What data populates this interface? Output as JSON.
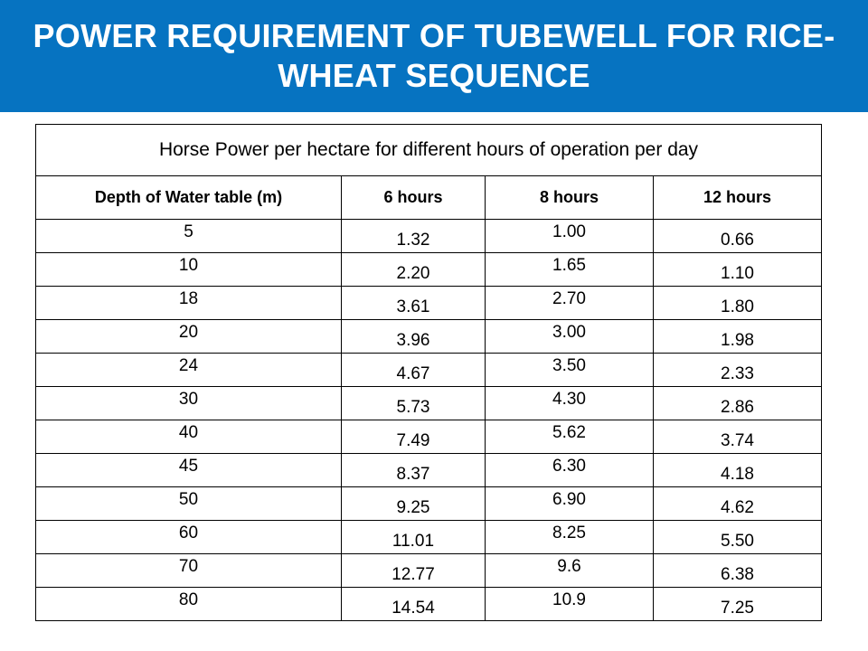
{
  "slide": {
    "title": "POWER REQUIREMENT OF TUBEWELL FOR RICE-WHEAT SEQUENCE"
  },
  "table": {
    "caption": "Horse Power per hectare for different hours of operation per day",
    "headers": [
      "Depth of Water table (m)",
      "6 hours",
      "8 hours",
      "12 hours"
    ],
    "rows": [
      [
        "5",
        "1.32",
        "1.00",
        "0.66"
      ],
      [
        "10",
        "2.20",
        "1.65",
        "1.10"
      ],
      [
        "18",
        "3.61",
        "2.70",
        "1.80"
      ],
      [
        "20",
        "3.96",
        "3.00",
        "1.98"
      ],
      [
        "24",
        "4.67",
        "3.50",
        "2.33"
      ],
      [
        "30",
        "5.73",
        "4.30",
        "2.86"
      ],
      [
        "40",
        "7.49",
        "5.62",
        "3.74"
      ],
      [
        "45",
        "8.37",
        "6.30",
        "4.18"
      ],
      [
        "50",
        "9.25",
        "6.90",
        "4.62"
      ],
      [
        "60",
        "11.01",
        "8.25",
        "5.50"
      ],
      [
        "70",
        "12.77",
        "9.6",
        "6.38"
      ],
      [
        "80",
        "14.54",
        "10.9",
        "7.25"
      ]
    ]
  },
  "colors": {
    "title_bar": "#0673c1",
    "title_text": "#ffffff"
  }
}
